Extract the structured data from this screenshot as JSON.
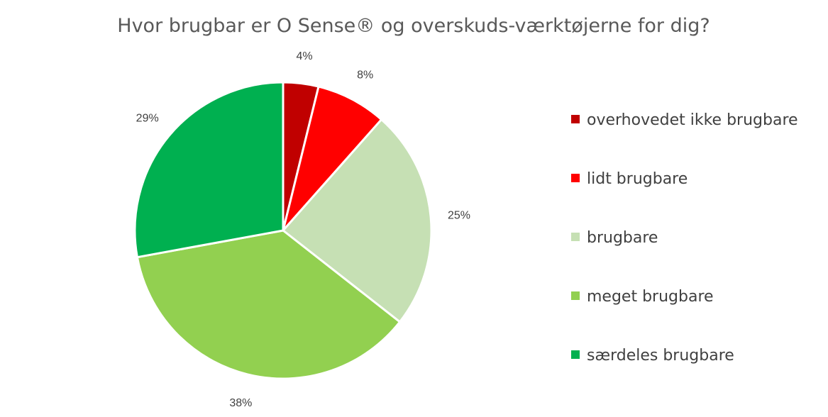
{
  "chart_data": {
    "type": "pie",
    "title": "Hvor brugbar er O Sense® og overskuds-værktøjerne for dig?",
    "legend_position": "right",
    "start_angle_deg": 0,
    "direction": "clockwise",
    "slices": [
      {
        "label": "overhovedet ikke brugbare",
        "value": 4,
        "display": "4%",
        "color": "#C00000"
      },
      {
        "label": "lidt brugbare",
        "value": 8,
        "display": "8%",
        "color": "#FF0000"
      },
      {
        "label": "brugbare",
        "value": 25,
        "display": "25%",
        "color": "#C6E0B4"
      },
      {
        "label": "meget brugbare",
        "value": 38,
        "display": "38%",
        "color": "#92D050"
      },
      {
        "label": "særdeles brugbare",
        "value": 29,
        "display": "29%",
        "color": "#00B050"
      }
    ]
  }
}
